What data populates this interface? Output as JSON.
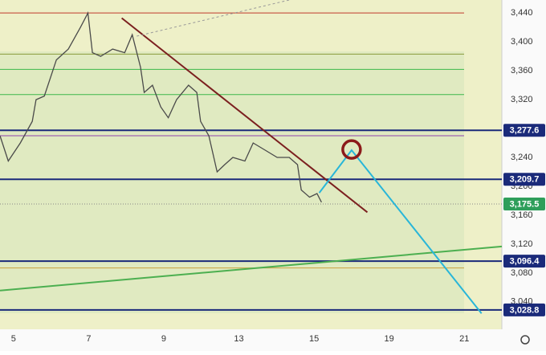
{
  "chart_data": {
    "type": "line",
    "xlim": [
      -0.18,
      6.5
    ],
    "ylim": [
      3002,
      3458
    ],
    "xticks": [
      {
        "value": 0,
        "label": "5"
      },
      {
        "value": 1,
        "label": "7"
      },
      {
        "value": 2,
        "label": "9"
      },
      {
        "value": 3,
        "label": "13"
      },
      {
        "value": 4,
        "label": "15"
      },
      {
        "value": 5,
        "label": "19"
      },
      {
        "value": 6,
        "label": "21"
      }
    ],
    "yticks": [
      {
        "value": 3040,
        "label": "3,040"
      },
      {
        "value": 3080,
        "label": "3,080"
      },
      {
        "value": 3120,
        "label": "3,120"
      },
      {
        "value": 3160,
        "label": "3,160"
      },
      {
        "value": 3200,
        "label": "3,200"
      },
      {
        "value": 3240,
        "label": "3,240"
      },
      {
        "value": 3280,
        "label": "3,280"
      },
      {
        "value": 3320,
        "label": "3,320"
      },
      {
        "value": 3360,
        "label": "3,360"
      },
      {
        "value": 3400,
        "label": "3,400"
      },
      {
        "value": 3440,
        "label": "3,440"
      }
    ],
    "series": [
      {
        "color": "#4a4a4a",
        "x": [
          -0.18,
          -0.07,
          0.09,
          0.25,
          0.3,
          0.41,
          0.57,
          0.73,
          0.89,
          0.99,
          1.05,
          1.16,
          1.32,
          1.48,
          1.58,
          1.69,
          1.74,
          1.85,
          1.96,
          2.06,
          2.17,
          2.33,
          2.44,
          2.49,
          2.6,
          2.71,
          2.81,
          2.92,
          3.08,
          3.19,
          3.35,
          3.51,
          3.67,
          3.78,
          3.83,
          3.94,
          4.04,
          4.1
        ],
        "values": [
          3270,
          3235,
          3260,
          3290,
          3320,
          3325,
          3375,
          3390,
          3420,
          3440,
          3385,
          3380,
          3390,
          3385,
          3410,
          3365,
          3330,
          3340,
          3310,
          3295,
          3320,
          3340,
          3330,
          3290,
          3270,
          3220,
          3230,
          3240,
          3235,
          3260,
          3250,
          3240,
          3240,
          3230,
          3195,
          3185,
          3190,
          3178
        ]
      }
    ],
    "levels": [
      {
        "value": 3440,
        "color": "#c0392b"
      },
      {
        "value": 3383,
        "color": "#8a9a3a"
      },
      {
        "value": 3362,
        "color": "#3cb84a"
      },
      {
        "value": 3327,
        "color": "#3cb84a"
      },
      {
        "value": 3277.6,
        "color": "#1a2a7a",
        "label": "3,277.6"
      },
      {
        "value": 3270,
        "color": "#8e44ad"
      },
      {
        "value": 3209.7,
        "color": "#1a2a7a",
        "label": "3,209.7"
      },
      {
        "value": 3096.4,
        "color": "#1a2a7a",
        "label": "3,096.4"
      },
      {
        "value": 3087,
        "color": "#c8a040"
      },
      {
        "value": 3028.8,
        "color": "#1a2a7a",
        "label": "3,028.8"
      }
    ],
    "last_price": {
      "value": 3175.5,
      "label": "3,175.5",
      "color": "#2e9e5a"
    },
    "trendlines": [
      {
        "color": "#7b1f1f",
        "x": [
          1.44,
          4.71
        ],
        "values": [
          3433,
          3164
        ],
        "dashed": false
      },
      {
        "color": "#4caf50",
        "x": [
          -0.18,
          6.5
        ],
        "values": [
          3055.6,
          3116.7
        ],
        "dashed": false
      },
      {
        "color": "#999999",
        "x": [
          1.64,
          3.67
        ],
        "values": [
          3408,
          3458
        ],
        "dashed": true
      },
      {
        "color": "#29b6d8",
        "x": [
          4.07,
          4.5,
          6.23
        ],
        "values": [
          3191,
          3250,
          3024
        ],
        "dashed": false
      }
    ],
    "marker": {
      "x": 4.5,
      "value": 3251,
      "color": "#8b1a1a"
    }
  }
}
